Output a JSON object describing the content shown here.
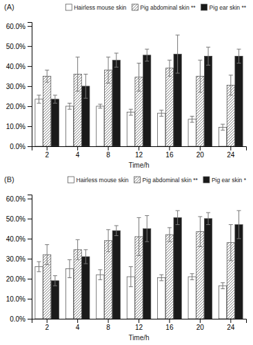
{
  "chart_data": [
    {
      "type": "bar",
      "title": "(A)",
      "xlabel": "Time/h",
      "categories": [
        "2",
        "4",
        "8",
        "12",
        "16",
        "20",
        "24"
      ],
      "series": [
        {
          "name": "Hairless mouse skin",
          "color": "#ffffff",
          "values": [
            23.5,
            20.0,
            20.0,
            17.0,
            16.5,
            13.5,
            9.5
          ],
          "errors": [
            2.0,
            1.5,
            1.0,
            1.5,
            1.5,
            1.5,
            1.5
          ]
        },
        {
          "name": "Pig abdominal skin **",
          "color": "#ffffff",
          "values": [
            35.0,
            36.0,
            38.0,
            34.5,
            39.0,
            35.0,
            30.5
          ],
          "errors": [
            3.0,
            8.5,
            6.5,
            7.0,
            4.0,
            8.0,
            5.0
          ]
        },
        {
          "name": "Pig ear skin **",
          "color": "#1a1a1a",
          "values": [
            23.5,
            30.0,
            43.0,
            45.5,
            46.0,
            45.0,
            45.0
          ],
          "errors": [
            2.0,
            6.0,
            3.5,
            3.0,
            9.5,
            4.5,
            3.5
          ]
        }
      ],
      "ylim": [
        0,
        62
      ],
      "yticks": [
        {
          "value": 0,
          "label": "0.0%"
        },
        {
          "value": 10,
          "label": "10.0%"
        },
        {
          "value": 20,
          "label": "20.0%"
        },
        {
          "value": 30,
          "label": "30.0%"
        },
        {
          "value": 40,
          "label": "40.0%"
        },
        {
          "value": 50,
          "label": "50.0%"
        },
        {
          "value": 60,
          "label": "60.0%"
        }
      ],
      "grid": false,
      "legend": "upper right"
    },
    {
      "type": "bar",
      "title": "(B)",
      "xlabel": "Time/h",
      "categories": [
        "2",
        "4",
        "8",
        "12",
        "16",
        "20",
        "24"
      ],
      "series": [
        {
          "name": "Hairless mouse skin",
          "color": "#ffffff",
          "values": [
            26.0,
            25.0,
            22.0,
            21.0,
            20.5,
            21.0,
            16.5
          ],
          "errors": [
            2.5,
            4.5,
            2.5,
            5.0,
            1.5,
            1.5,
            1.5
          ]
        },
        {
          "name": "Pig abdominal skin **",
          "color": "#ffffff",
          "values": [
            32.0,
            34.5,
            39.0,
            41.0,
            42.0,
            43.5,
            38.0
          ],
          "errors": [
            5.0,
            5.0,
            5.5,
            9.5,
            3.5,
            7.5,
            9.0
          ]
        },
        {
          "name": "Pig ear skin *",
          "color": "#1a1a1a",
          "values": [
            19.0,
            31.0,
            44.0,
            45.0,
            50.5,
            50.0,
            47.0
          ],
          "errors": [
            2.5,
            3.5,
            2.5,
            6.5,
            3.5,
            3.0,
            7.0
          ]
        }
      ],
      "ylim": [
        0,
        62
      ],
      "yticks": [
        {
          "value": 0,
          "label": "0.0%"
        },
        {
          "value": 10,
          "label": "10.0%"
        },
        {
          "value": 20,
          "label": "20.0%"
        },
        {
          "value": 30,
          "label": "30.0%"
        },
        {
          "value": 40,
          "label": "40.0%"
        },
        {
          "value": 50,
          "label": "50.0%"
        },
        {
          "value": 60,
          "label": "60.0%"
        }
      ],
      "grid": false,
      "legend": "upper right"
    }
  ]
}
